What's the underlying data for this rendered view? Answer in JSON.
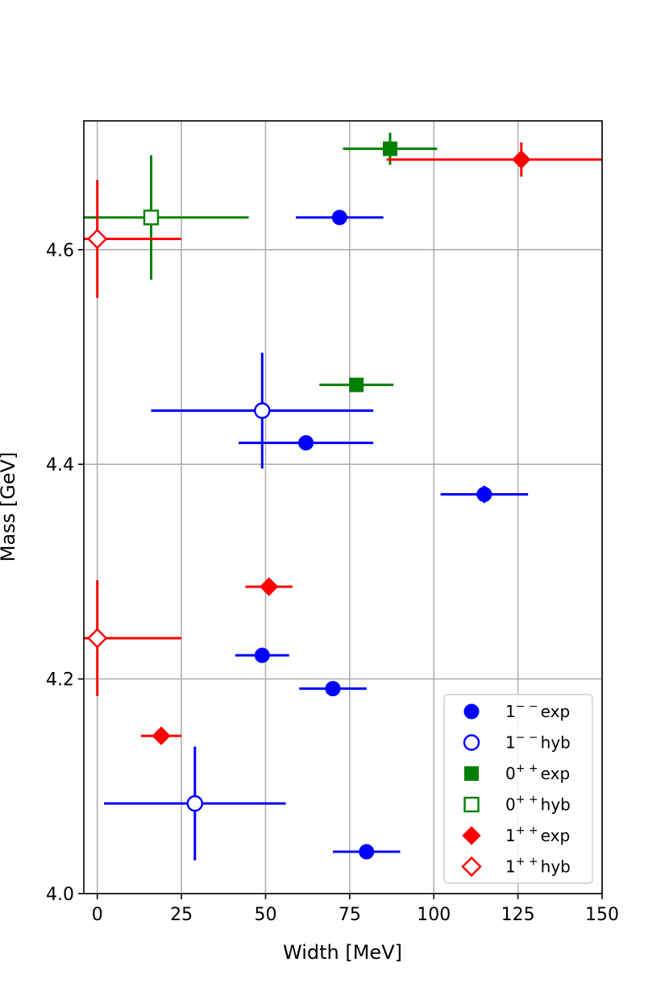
{
  "chart_data": {
    "type": "scatter",
    "xlabel": "Width [MeV]",
    "ylabel": "Mass [GeV]",
    "xlim": [
      -4,
      150
    ],
    "ylim": [
      4.0,
      4.72
    ],
    "xticks": [
      0,
      25,
      50,
      75,
      100,
      125,
      150
    ],
    "yticks": [
      4.0,
      4.2,
      4.4,
      4.6
    ],
    "xtick_labels": [
      "0",
      "25",
      "50",
      "75",
      "100",
      "125",
      "150"
    ],
    "ytick_labels": [
      "4.0",
      "4.2",
      "4.4",
      "4.6"
    ],
    "grid": true,
    "legend_position": "bottom-right",
    "series": [
      {
        "name": "1⁻⁻exp",
        "base": "1",
        "sup": "− −",
        "tail": "exp",
        "marker": "circle",
        "filled": true,
        "color": "#0000ff",
        "points": [
          {
            "x": 72,
            "y": 4.63,
            "xerr": 13,
            "yerr": 0.004
          },
          {
            "x": 62,
            "y": 4.42,
            "xerr": 20,
            "yerr": 0.004
          },
          {
            "x": 115,
            "y": 4.372,
            "xerr": 13,
            "yerr": 0.008
          },
          {
            "x": 49,
            "y": 4.222,
            "xerr": 8,
            "yerr": 0.004
          },
          {
            "x": 70,
            "y": 4.191,
            "xerr": 10,
            "yerr": 0.004
          },
          {
            "x": 80,
            "y": 4.039,
            "xerr": 10,
            "yerr": 0.003
          }
        ]
      },
      {
        "name": "1⁻⁻hyb",
        "base": "1",
        "sup": "− −",
        "tail": "hyb",
        "marker": "circle",
        "filled": false,
        "color": "#0000ff",
        "points": [
          {
            "x": 49,
            "y": 4.45,
            "xerr": 33,
            "yerr": 0.054
          },
          {
            "x": 29,
            "y": 4.084,
            "xerr": 27,
            "yerr": 0.053
          }
        ]
      },
      {
        "name": "0⁺⁺exp",
        "base": "0",
        "sup": "+ +",
        "tail": "exp",
        "marker": "square",
        "filled": true,
        "color": "#008000",
        "points": [
          {
            "x": 87,
            "y": 4.694,
            "xerr": 14,
            "yerr": 0.015
          },
          {
            "x": 77,
            "y": 4.474,
            "xerr": 11,
            "yerr": 0.004
          }
        ]
      },
      {
        "name": "0⁺⁺hyb",
        "base": "0",
        "sup": "+ +",
        "tail": "hyb",
        "marker": "square",
        "filled": false,
        "color": "#008000",
        "points": [
          {
            "x": 16,
            "y": 4.63,
            "xerr": 29,
            "yerr": 0.058
          }
        ]
      },
      {
        "name": "1⁺⁺exp",
        "base": "1",
        "sup": "+ +",
        "tail": "exp",
        "marker": "diamond",
        "filled": true,
        "color": "#ff0000",
        "points": [
          {
            "x": 126,
            "y": 4.684,
            "xerr": 40,
            "yerr": 0.016
          },
          {
            "x": 51,
            "y": 4.286,
            "xerr": 7,
            "yerr": 0.004
          },
          {
            "x": 19,
            "y": 4.147,
            "xerr": 6,
            "yerr": 0.003
          }
        ]
      },
      {
        "name": "1⁺⁺hyb",
        "base": "1",
        "sup": "+ +",
        "tail": "hyb",
        "marker": "diamond",
        "filled": false,
        "color": "#ff0000",
        "points": [
          {
            "x": 0,
            "y": 4.61,
            "xerr": 25,
            "yerr": 0.055
          },
          {
            "x": 0,
            "y": 4.238,
            "xerr": 25,
            "yerr": 0.054
          }
        ]
      }
    ]
  }
}
